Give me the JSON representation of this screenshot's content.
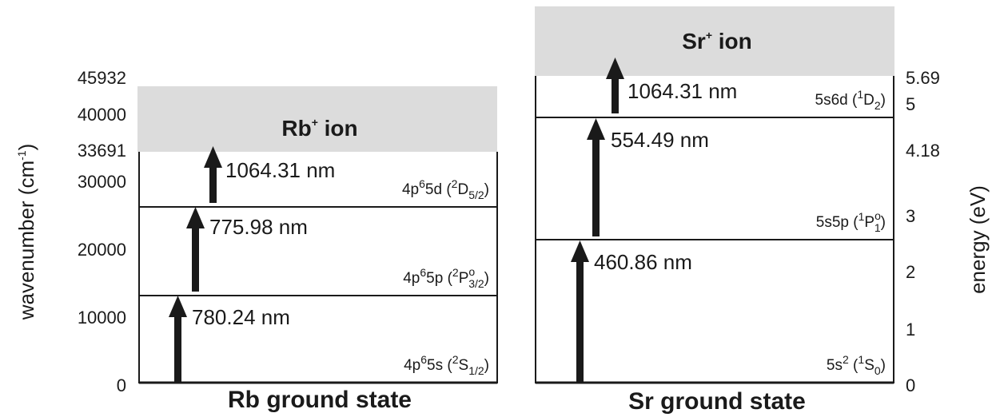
{
  "left_axis": {
    "label": "wavenumber (cm",
    "label_sup": "-1",
    "label_end": ")",
    "ticks": [
      "45932",
      "40000",
      "33691",
      "30000",
      "20000",
      "10000",
      "0"
    ]
  },
  "right_axis": {
    "label": "energy (eV)",
    "ticks": [
      "5.69",
      "5",
      "4.18",
      "3",
      "2",
      "1",
      "0"
    ]
  },
  "rb": {
    "ion_label": "Rb",
    "ion_sup": "+",
    "ion_suffix": " ion",
    "ground_label": "Rb ground state",
    "transitions": [
      {
        "wavelength_nm": 780.24,
        "label": "780.24 nm"
      },
      {
        "wavelength_nm": 775.98,
        "label": "775.98 nm"
      },
      {
        "wavelength_nm": 1064.31,
        "label": "1064.31 nm"
      }
    ],
    "states": [
      {
        "config": "4p",
        "config_sup": "6",
        "config_rest": "5s (",
        "term_sup": "2",
        "term": "S",
        "term_sup2": "",
        "term_sub": "1/2",
        "close": ")"
      },
      {
        "config": "4p",
        "config_sup": "6",
        "config_rest": "5p (",
        "term_sup": "2",
        "term": "P",
        "term_sup2": "o",
        "term_sub": "3/2",
        "close": ")"
      },
      {
        "config": "4p",
        "config_sup": "6",
        "config_rest": "5d (",
        "term_sup": "2",
        "term": "D",
        "term_sup2": "",
        "term_sub": "5/2",
        "close": ")"
      }
    ]
  },
  "sr": {
    "ion_label": "Sr",
    "ion_sup": "+",
    "ion_suffix": " ion",
    "ground_label": "Sr ground state",
    "transitions": [
      {
        "wavelength_nm": 460.86,
        "label": "460.86 nm"
      },
      {
        "wavelength_nm": 554.49,
        "label": "554.49 nm"
      },
      {
        "wavelength_nm": 1064.31,
        "label": "1064.31 nm"
      }
    ],
    "states": [
      {
        "config": "5s",
        "config_sup": "2",
        "config_rest": " (",
        "term_sup": "1",
        "term": "S",
        "term_sup2": "",
        "term_sub": "0",
        "close": ")"
      },
      {
        "config": "5s5p",
        "config_sup": "",
        "config_rest": " (",
        "term_sup": "1",
        "term": "P",
        "term_sup2": "o",
        "term_sub": "1",
        "close": ")"
      },
      {
        "config": "5s6d",
        "config_sup": "",
        "config_rest": " (",
        "term_sup": "1",
        "term": "D",
        "term_sup2": "",
        "term_sub": "2",
        "close": ")"
      }
    ]
  },
  "colors": {
    "ion_band": "#dcdcdc",
    "line": "#1a1a1a",
    "arrow": "#1a1a1a"
  }
}
